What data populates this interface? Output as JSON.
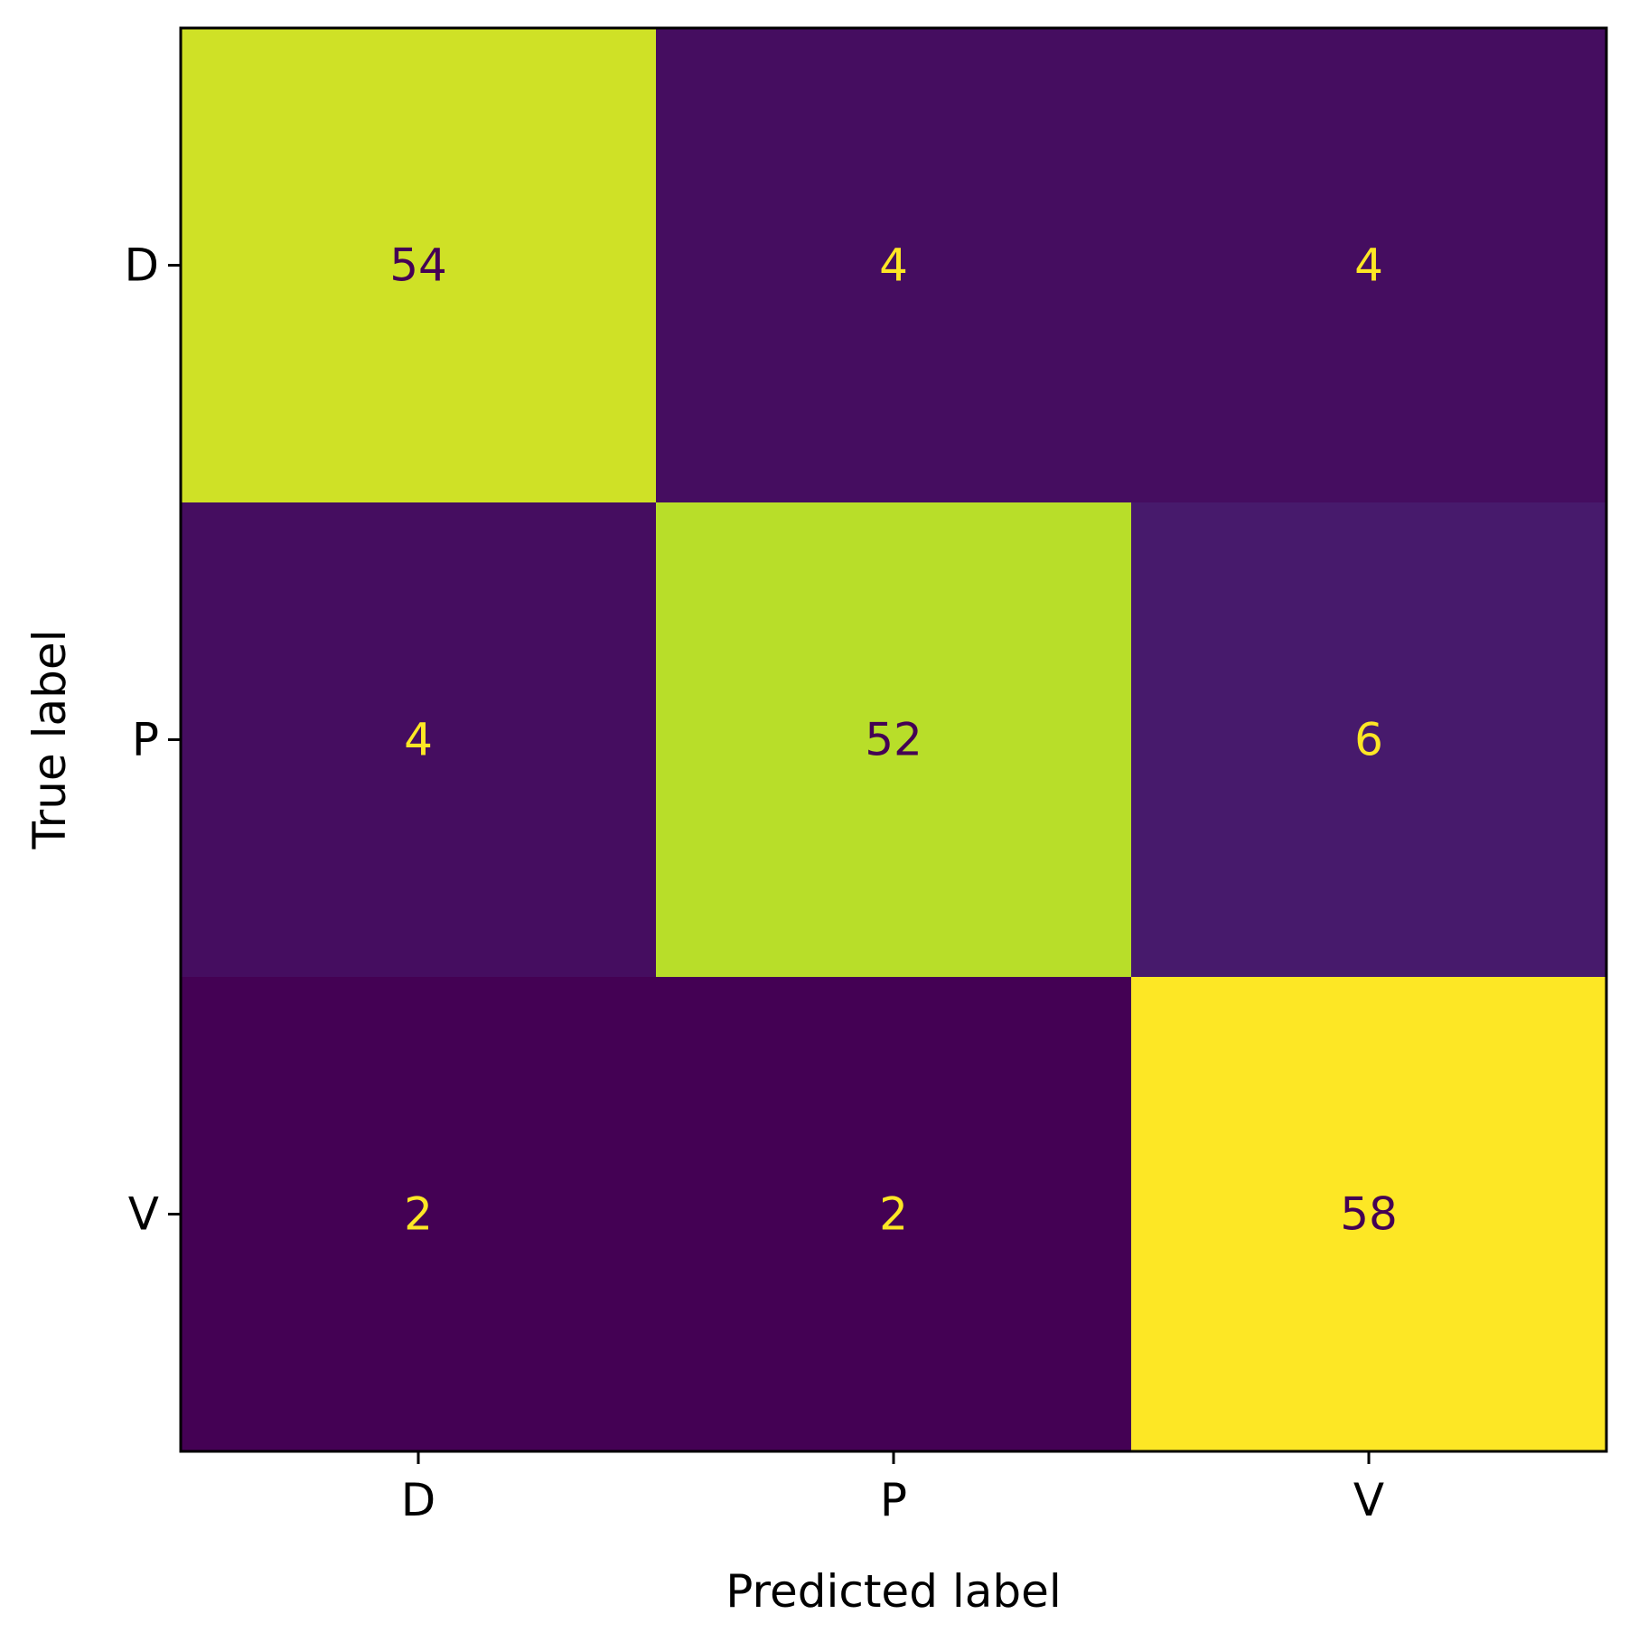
{
  "chart_data": {
    "type": "heatmap",
    "subtype": "confusion-matrix",
    "title": "",
    "xlabel": "Predicted label",
    "ylabel": "True label",
    "x_categories": [
      "D",
      "P",
      "V"
    ],
    "y_categories": [
      "D",
      "P",
      "V"
    ],
    "values": [
      [
        54,
        4,
        4
      ],
      [
        4,
        52,
        6
      ],
      [
        2,
        2,
        58
      ]
    ],
    "colormap": "viridis",
    "value_range": [
      2,
      58
    ],
    "colorbar": false,
    "grid": false,
    "text_color_dark": "#440154",
    "text_color_light": "#fde725"
  }
}
